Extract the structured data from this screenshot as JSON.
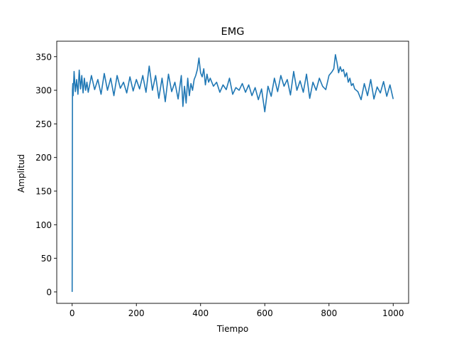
{
  "chart_data": {
    "type": "line",
    "title": "EMG",
    "xlabel": "Tiempo",
    "ylabel": "Amplitud",
    "xlim": [
      -48,
      1048
    ],
    "ylim": [
      -17,
      373
    ],
    "grid": false,
    "xticks": [
      0,
      200,
      400,
      600,
      800,
      1000
    ],
    "xtick_labels": [
      "0",
      "200",
      "400",
      "600",
      "800",
      "1000"
    ],
    "yticks": [
      0,
      50,
      100,
      150,
      200,
      250,
      300,
      350
    ],
    "ytick_labels": [
      "0",
      "50",
      "100",
      "150",
      "200",
      "250",
      "300",
      "350"
    ],
    "series": [
      {
        "color": "#1f77b4",
        "x": [
          0,
          1,
          2,
          3,
          6,
          10,
          14,
          18,
          22,
          26,
          30,
          34,
          38,
          42,
          46,
          50,
          60,
          70,
          80,
          90,
          100,
          110,
          120,
          130,
          140,
          150,
          160,
          170,
          180,
          190,
          200,
          210,
          220,
          230,
          240,
          250,
          260,
          270,
          280,
          290,
          300,
          310,
          320,
          330,
          340,
          345,
          350,
          355,
          360,
          365,
          370,
          375,
          380,
          385,
          390,
          395,
          400,
          405,
          410,
          415,
          420,
          425,
          430,
          440,
          450,
          460,
          470,
          480,
          490,
          500,
          510,
          520,
          530,
          540,
          550,
          560,
          570,
          580,
          590,
          600,
          610,
          620,
          630,
          640,
          650,
          660,
          670,
          680,
          690,
          700,
          710,
          720,
          730,
          740,
          750,
          760,
          770,
          780,
          790,
          800,
          810,
          815,
          820,
          825,
          830,
          835,
          840,
          845,
          850,
          855,
          860,
          865,
          870,
          875,
          880,
          890,
          900,
          910,
          920,
          930,
          940,
          950,
          960,
          970,
          980,
          990,
          1000
        ],
        "y": [
          0,
          300,
          310,
          292,
          328,
          298,
          316,
          294,
          330,
          302,
          322,
          296,
          318,
          300,
          312,
          297,
          322,
          301,
          316,
          294,
          325,
          300,
          318,
          292,
          322,
          303,
          312,
          296,
          320,
          299,
          316,
          302,
          322,
          297,
          336,
          300,
          322,
          288,
          318,
          283,
          324,
          298,
          312,
          287,
          322,
          276,
          306,
          281,
          318,
          292,
          310,
          300,
          316,
          322,
          331,
          348,
          326,
          320,
          332,
          308,
          324,
          312,
          318,
          306,
          312,
          297,
          308,
          301,
          318,
          294,
          304,
          300,
          310,
          297,
          308,
          292,
          304,
          286,
          302,
          268,
          306,
          291,
          318,
          298,
          322,
          306,
          316,
          293,
          328,
          300,
          314,
          297,
          324,
          288,
          312,
          300,
          318,
          306,
          301,
          322,
          328,
          332,
          353,
          341,
          326,
          335,
          328,
          331,
          320,
          326,
          312,
          318,
          307,
          310,
          302,
          298,
          286,
          310,
          292,
          316,
          287,
          305,
          296,
          313,
          291,
          308,
          287
        ]
      }
    ]
  }
}
